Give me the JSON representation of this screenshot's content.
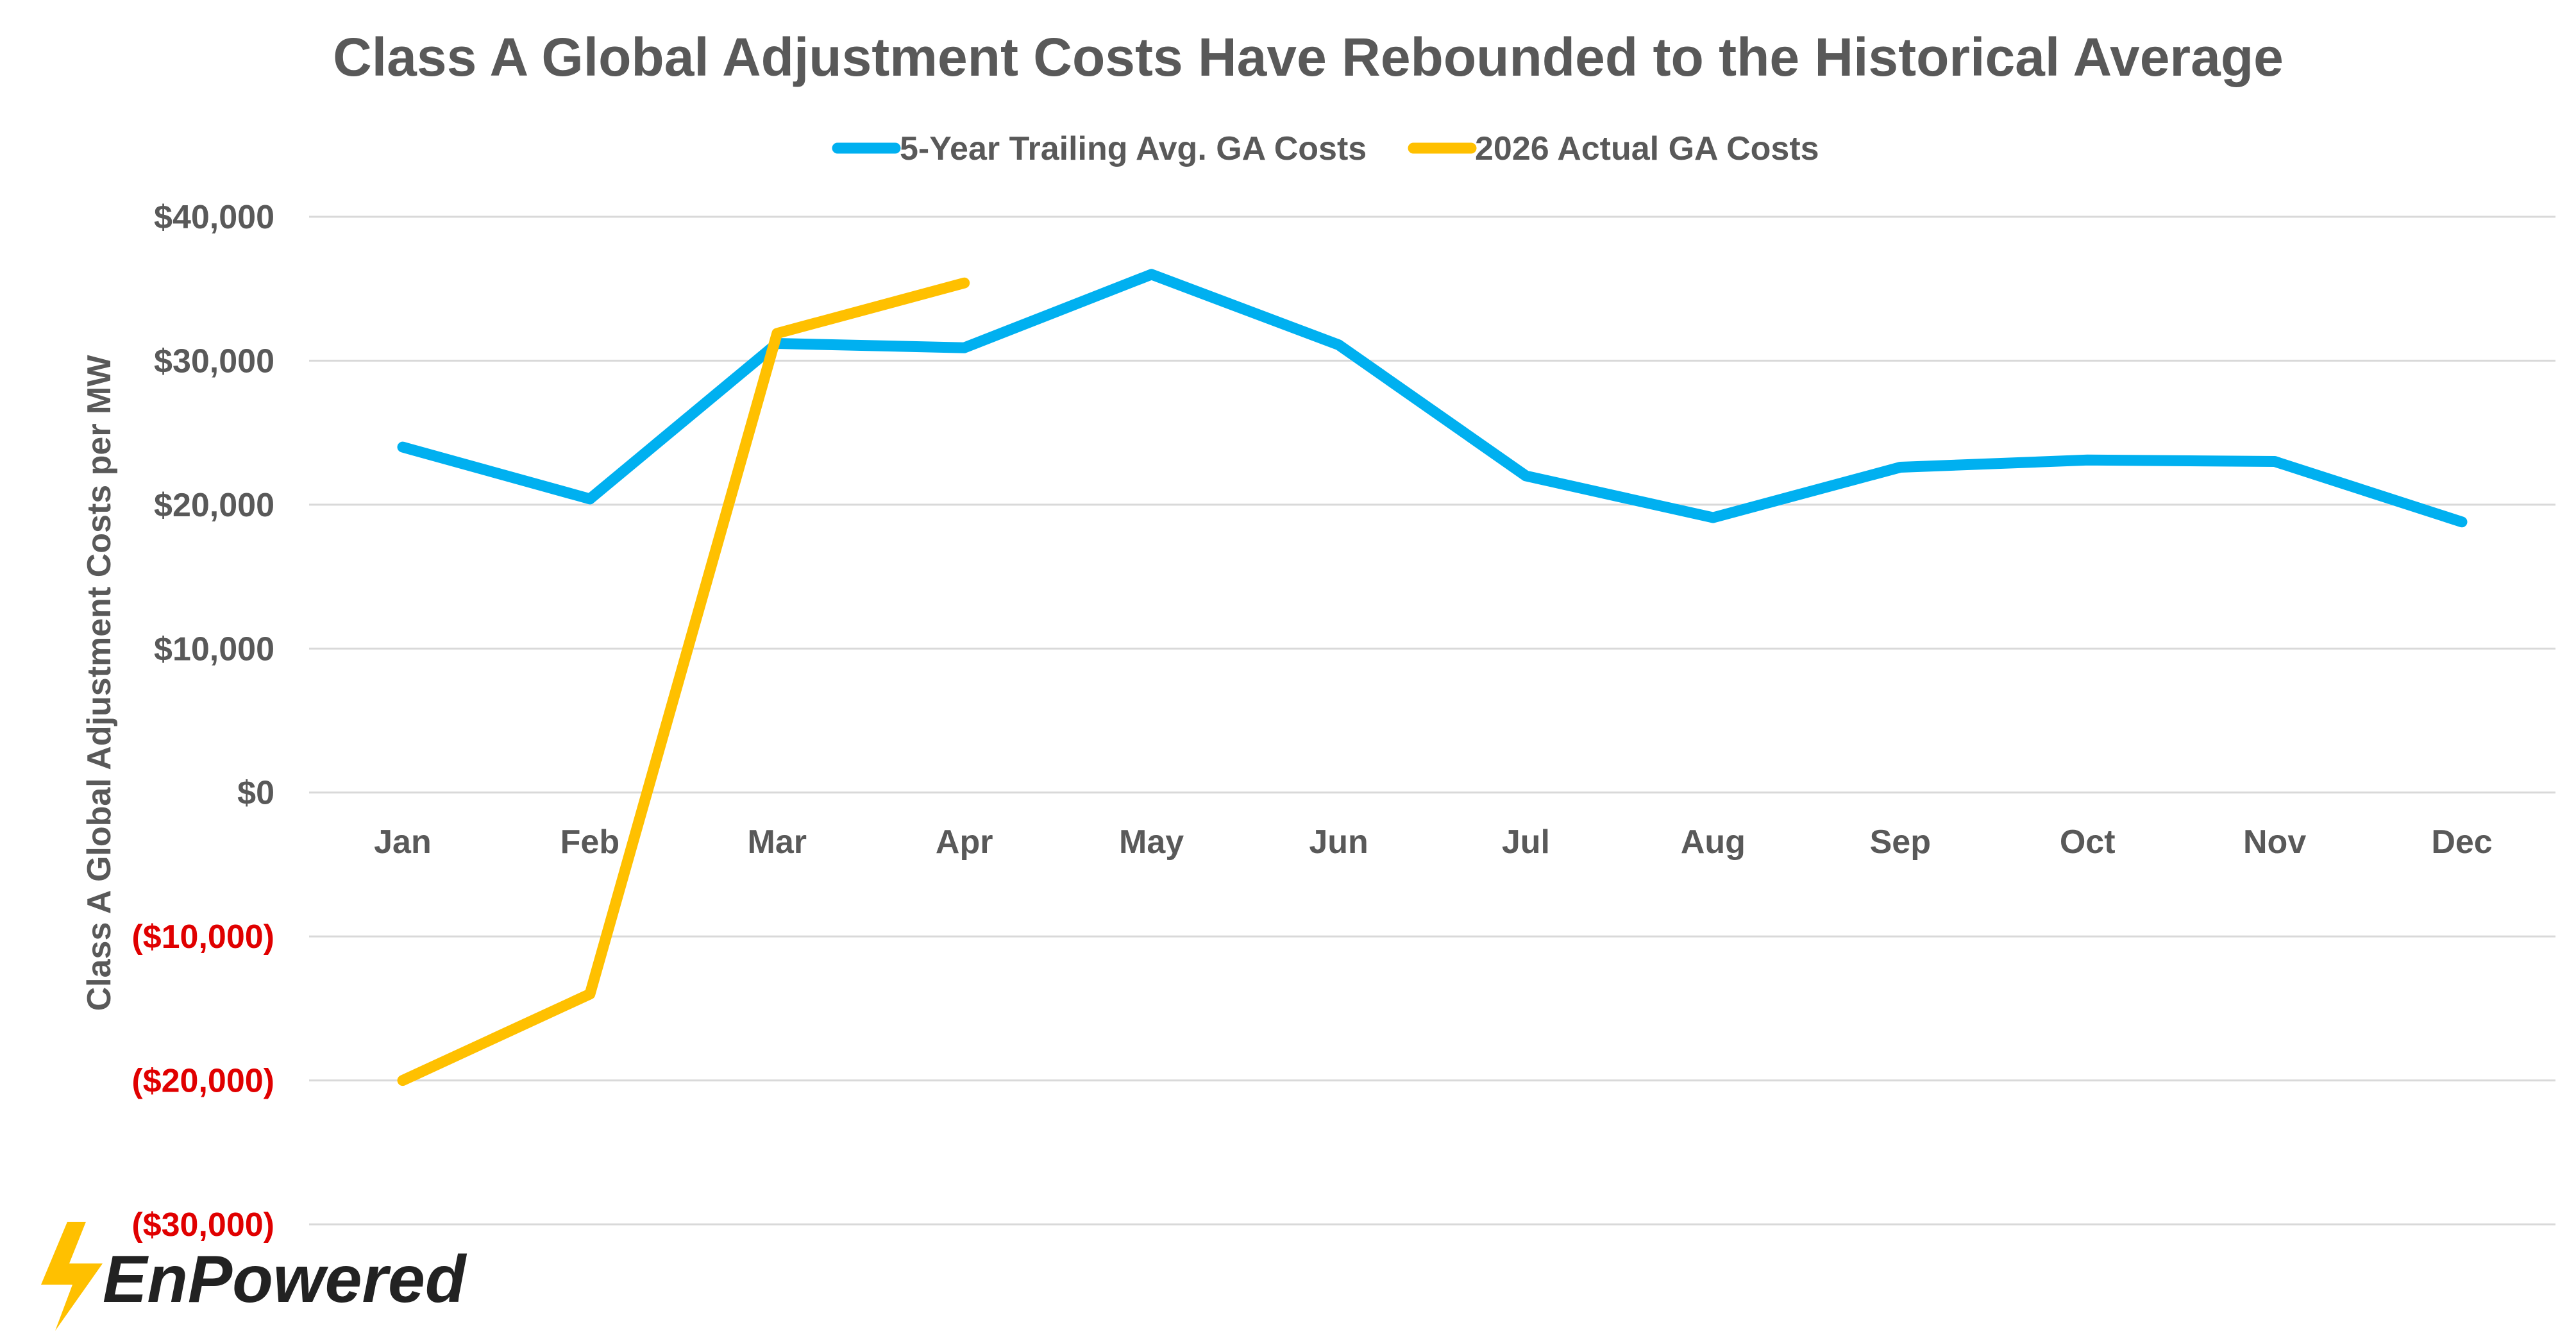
{
  "chart_data": {
    "type": "line",
    "title": "Class A Global Adjustment Costs Have Rebounded to the Historical Average",
    "ylabel": "Class A Global Adjustment Costs per MW",
    "xlabel": "",
    "categories": [
      "Jan",
      "Feb",
      "Mar",
      "Apr",
      "May",
      "Jun",
      "Jul",
      "Aug",
      "Sep",
      "Oct",
      "Nov",
      "Dec"
    ],
    "series": [
      {
        "name": "5-Year Trailing Avg. GA Costs",
        "color": "#00b0f0",
        "values": [
          24000,
          20400,
          31200,
          30900,
          36000,
          31100,
          22000,
          19100,
          22600,
          23100,
          23000,
          18800
        ]
      },
      {
        "name": "2026 Actual GA Costs",
        "color": "#ffc000",
        "values": [
          -20000,
          -14000,
          31900,
          35400,
          null,
          null,
          null,
          null,
          null,
          null,
          null,
          null
        ]
      }
    ],
    "ylim": [
      -30000,
      40000
    ],
    "yticks": [
      40000,
      30000,
      20000,
      10000,
      0,
      -10000,
      -20000,
      -30000
    ],
    "ytick_labels": [
      "$40,000",
      "$30,000",
      "$20,000",
      "$10,000",
      "$0",
      "($10,000)",
      "($20,000)",
      "($30,000)"
    ],
    "negative_tick_color": "#e00000",
    "grid": true,
    "legend_position": "top-center"
  },
  "logo": {
    "text": "EnPowered",
    "bolt_color": "#ffc000"
  }
}
